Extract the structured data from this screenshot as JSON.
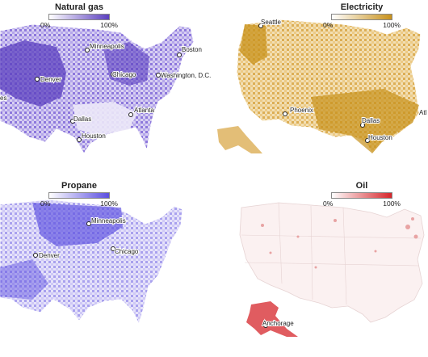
{
  "maps": [
    {
      "id": "natural-gas",
      "title": "Natural gas",
      "legend_low": "0%",
      "legend_high": "100%",
      "color": "#5b3fbf",
      "cities": [
        "Minneapolis",
        "Boston",
        "Denver",
        "Chicago",
        "Washington, D.C.",
        "Atlanta",
        "Dallas",
        "Houston"
      ],
      "partial_labels": [
        "es"
      ]
    },
    {
      "id": "electricity",
      "title": "Electricity",
      "legend_low": "0%",
      "legend_high": "100%",
      "color": "#c8911b",
      "cities": [
        "Seattle",
        "Phoenix",
        "Dallas",
        "Houston"
      ],
      "partial_labels": [
        "Atl"
      ]
    },
    {
      "id": "propane",
      "title": "Propane",
      "legend_low": "0%",
      "legend_high": "100%",
      "color": "#5b4ee0",
      "cities": [
        "Minneapolis",
        "Denver",
        "Chicago"
      ],
      "partial_labels": []
    },
    {
      "id": "oil",
      "title": "Oil",
      "legend_low": "0%",
      "legend_high": "100%",
      "color": "#d6262b",
      "cities": [
        "Anchorage"
      ],
      "partial_labels": []
    }
  ]
}
